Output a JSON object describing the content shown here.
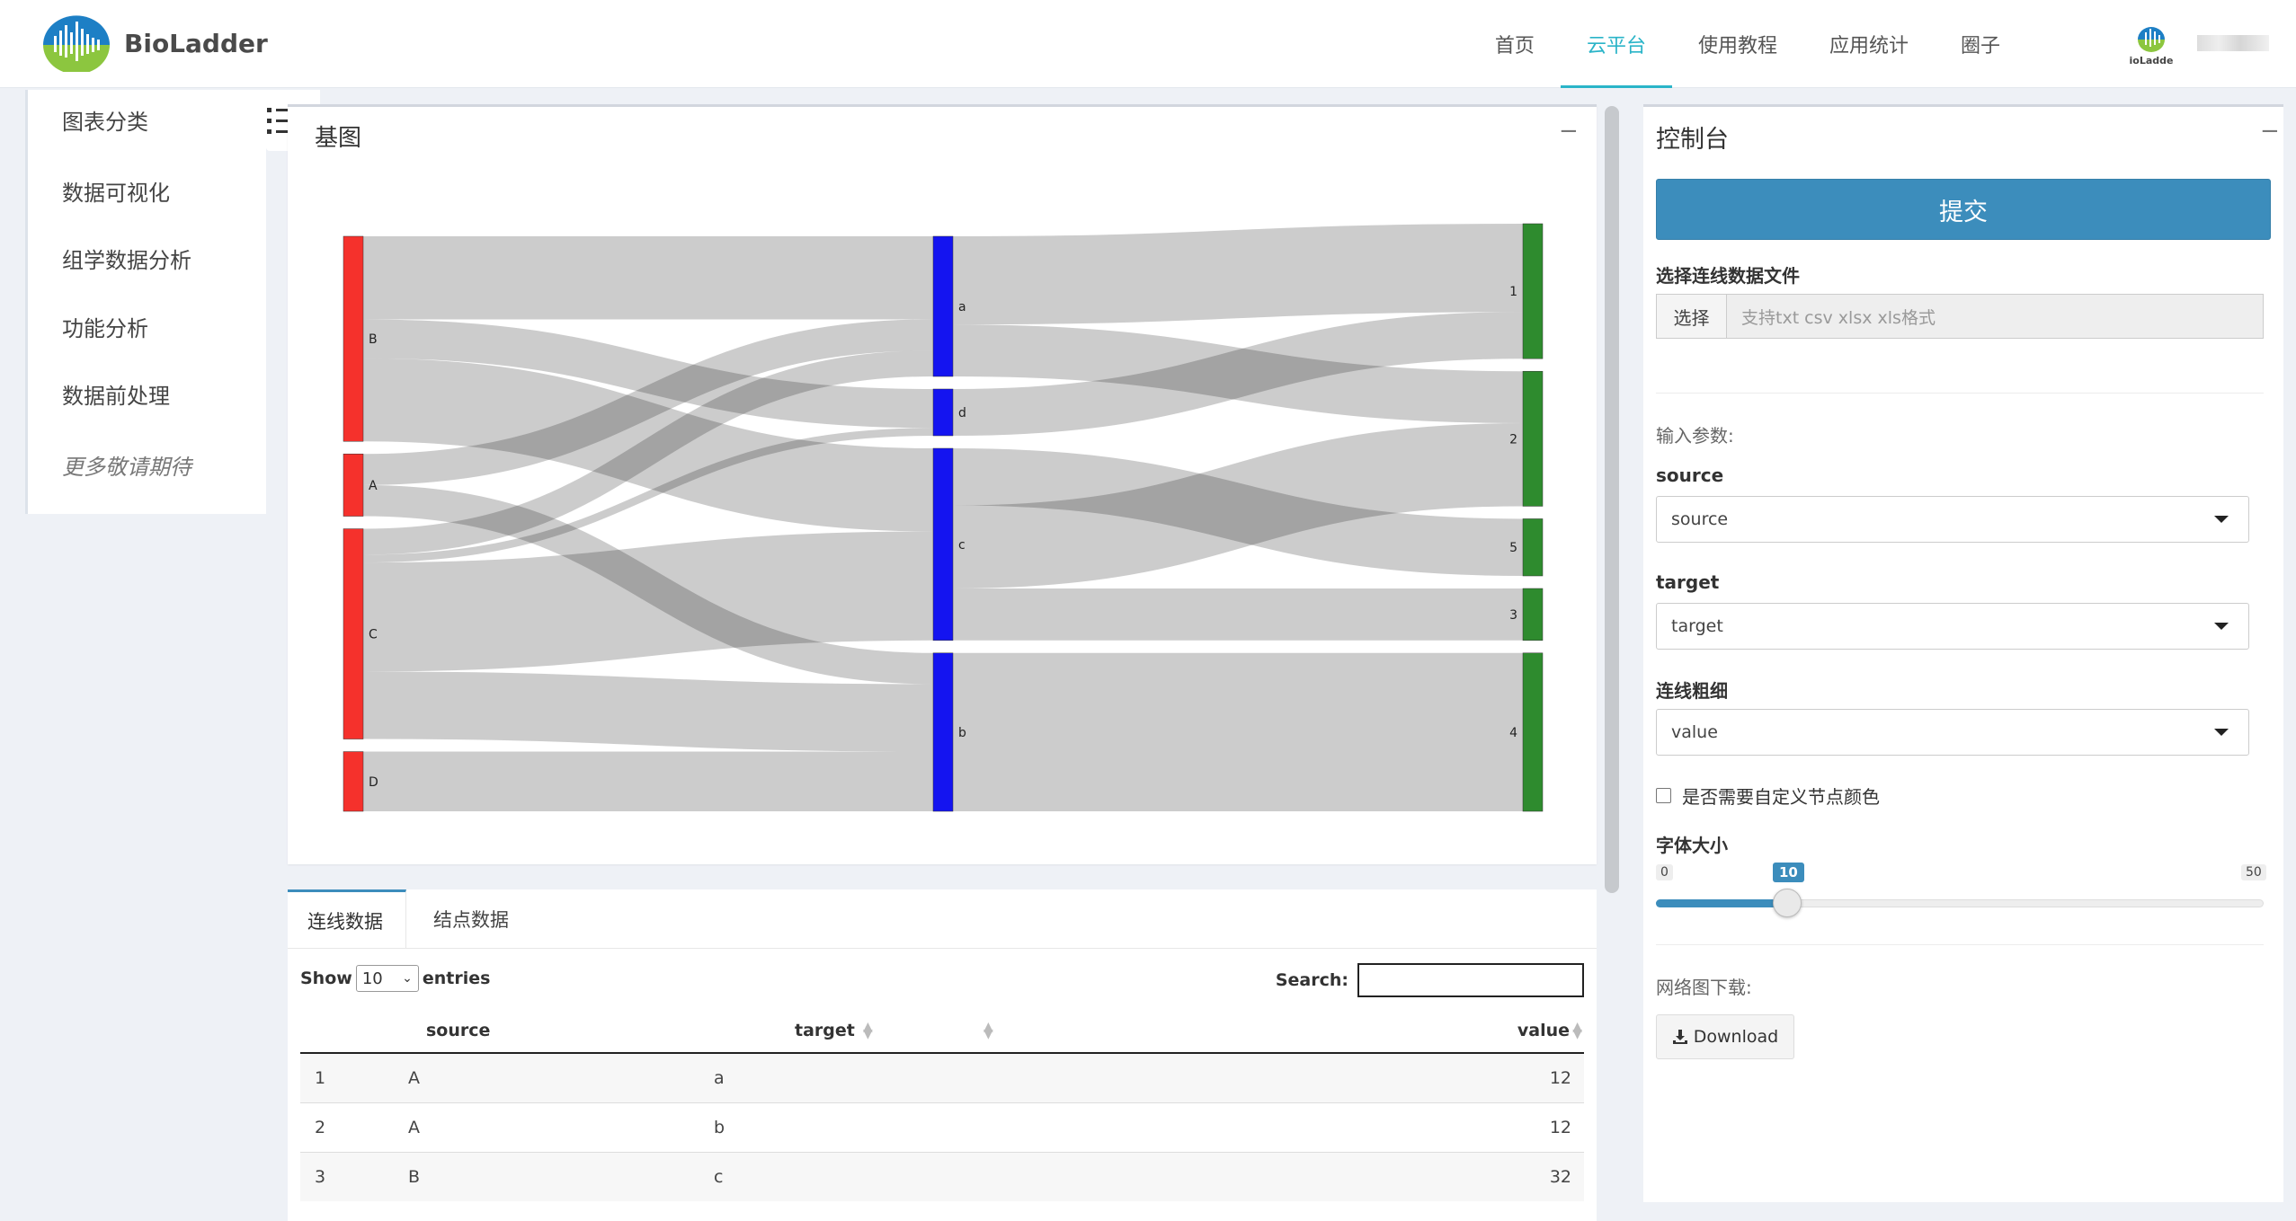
{
  "brand": {
    "name": "BioLadder",
    "small": "ioLadde"
  },
  "nav": {
    "items": [
      {
        "label": "首页",
        "active": false
      },
      {
        "label": "云平台",
        "active": true
      },
      {
        "label": "使用教程",
        "active": false
      },
      {
        "label": "应用统计",
        "active": false
      },
      {
        "label": "圈子",
        "active": false
      }
    ]
  },
  "sidebar": {
    "items": [
      "图表分类",
      "数据可视化",
      "组学数据分析",
      "功能分析",
      "数据前处理",
      "更多敬请期待"
    ]
  },
  "chart_panel": {
    "title": "基图",
    "collapse": "−"
  },
  "chart_data": {
    "type": "sankey",
    "nodes": [
      {
        "id": "B",
        "column": 0,
        "color": "#f5312c"
      },
      {
        "id": "A",
        "column": 0,
        "color": "#f5312c"
      },
      {
        "id": "C",
        "column": 0,
        "color": "#f5312c"
      },
      {
        "id": "D",
        "column": 0,
        "color": "#f5312c"
      },
      {
        "id": "a",
        "column": 1,
        "color": "#1414f0"
      },
      {
        "id": "d",
        "column": 1,
        "color": "#1414f0"
      },
      {
        "id": "c",
        "column": 1,
        "color": "#1414f0"
      },
      {
        "id": "b",
        "column": 1,
        "color": "#1414f0"
      },
      {
        "id": "1",
        "column": 2,
        "color": "#2e8b2e"
      },
      {
        "id": "2",
        "column": 2,
        "color": "#2e8b2e"
      },
      {
        "id": "5",
        "column": 2,
        "color": "#2e8b2e"
      },
      {
        "id": "3",
        "column": 2,
        "color": "#2e8b2e"
      },
      {
        "id": "4",
        "column": 2,
        "color": "#2e8b2e"
      }
    ],
    "links": [
      {
        "source": "B",
        "target": "a",
        "value": 32
      },
      {
        "source": "B",
        "target": "d",
        "value": 15
      },
      {
        "source": "B",
        "target": "c",
        "value": 32
      },
      {
        "source": "A",
        "target": "a",
        "value": 12
      },
      {
        "source": "A",
        "target": "b",
        "value": 12
      },
      {
        "source": "C",
        "target": "a",
        "value": 10
      },
      {
        "source": "C",
        "target": "d",
        "value": 3
      },
      {
        "source": "C",
        "target": "c",
        "value": 42
      },
      {
        "source": "C",
        "target": "b",
        "value": 26
      },
      {
        "source": "D",
        "target": "b",
        "value": 23
      },
      {
        "source": "a",
        "target": "1",
        "value": 34
      },
      {
        "source": "a",
        "target": "2",
        "value": 20
      },
      {
        "source": "a",
        "target": "3",
        "value": 0
      },
      {
        "source": "d",
        "target": "1",
        "value": 18
      },
      {
        "source": "c",
        "target": "5",
        "value": 22
      },
      {
        "source": "c",
        "target": "2",
        "value": 32
      },
      {
        "source": "c",
        "target": "3",
        "value": 20
      },
      {
        "source": "b",
        "target": "4",
        "value": 61
      }
    ],
    "font_size": 10
  },
  "table_panel": {
    "tabs": [
      {
        "label": "连线数据",
        "active": true
      },
      {
        "label": "结点数据",
        "active": false
      }
    ],
    "show_label": "Show",
    "entries_value": "10",
    "entries_label": "entries",
    "search_label": "Search:",
    "columns": [
      "source",
      "target",
      "value"
    ],
    "rows": [
      {
        "index": "1",
        "source": "A",
        "target": "a",
        "value": "12"
      },
      {
        "index": "2",
        "source": "A",
        "target": "b",
        "value": "12"
      },
      {
        "index": "3",
        "source": "B",
        "target": "c",
        "value": "32"
      }
    ]
  },
  "console": {
    "title": "控制台",
    "collapse": "−",
    "submit_label": "提交",
    "file_label": "选择连线数据文件",
    "file_button": "选择",
    "file_placeholder": "支持txt csv xlsx xls格式",
    "params_label": "输入参数:",
    "source_label": "source",
    "source_value": "source",
    "target_label": "target",
    "target_value": "target",
    "width_label": "连线粗细",
    "width_value": "value",
    "custom_color_label": "是否需要自定义节点颜色",
    "font_size_label": "字体大小",
    "slider": {
      "min": "0",
      "max": "50",
      "value": "10",
      "fraction": 0.2
    },
    "download_section": "网络图下载:",
    "download_label": "Download"
  }
}
